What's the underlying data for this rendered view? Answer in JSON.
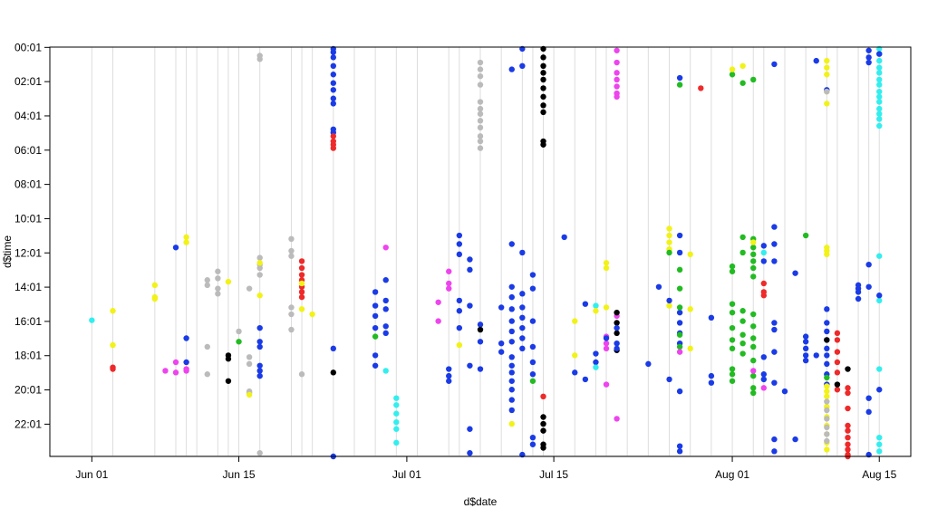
{
  "chart_data": {
    "type": "scatter",
    "title": "",
    "xlabel": "d$date",
    "ylabel": "d$time",
    "x_ticks": [
      "Jun 01",
      "Jun 15",
      "Jul 01",
      "Jul 15",
      "Aug 01",
      "Aug 15"
    ],
    "y_ticks": [
      "00:01",
      "02:01",
      "04:01",
      "06:01",
      "08:01",
      "10:01",
      "12:01",
      "14:01",
      "16:01",
      "18:01",
      "20:01",
      "22:01"
    ],
    "xlim": [
      "2016-05-28",
      "2016-08-18"
    ],
    "ylim_hours": [
      0.0,
      23.9
    ],
    "y_reversed": true,
    "grid": "vertical light-grey lines on observation dates",
    "legend": "none",
    "colors": {
      "cyan": "#33eeee",
      "yellow": "#f2f218",
      "red": "#ee2a2a",
      "magenta": "#ee44ee",
      "blue": "#1a3be6",
      "grey": "#bbbbbb",
      "black": "#000000",
      "green": "#22bb22"
    },
    "vlines": [
      "2016-06-01",
      "2016-06-03",
      "2016-06-07",
      "2016-06-09",
      "2016-06-10",
      "2016-06-11",
      "2016-06-13",
      "2016-06-14",
      "2016-06-15",
      "2016-06-17",
      "2016-06-20",
      "2016-06-21",
      "2016-06-22",
      "2016-06-24",
      "2016-06-26",
      "2016-06-28",
      "2016-06-30",
      "2016-07-02",
      "2016-07-05",
      "2016-07-06",
      "2016-07-08",
      "2016-07-10",
      "2016-07-12",
      "2016-07-13",
      "2016-07-14",
      "2016-07-15",
      "2016-07-17",
      "2016-07-19",
      "2016-07-20",
      "2016-07-22",
      "2016-07-24",
      "2016-07-26",
      "2016-07-28",
      "2016-07-30",
      "2016-08-01",
      "2016-08-03",
      "2016-08-04",
      "2016-08-06",
      "2016-08-08",
      "2016-08-10",
      "2016-08-11",
      "2016-08-13",
      "2016-08-14",
      "2016-08-15"
    ],
    "groups": [
      {
        "date": "2016-06-01",
        "color": "cyan",
        "times": [
          15.95
        ]
      },
      {
        "date": "2016-06-03",
        "color": "yellow",
        "times": [
          15.4,
          17.4
        ]
      },
      {
        "date": "2016-06-03",
        "color": "red",
        "times": [
          18.7,
          18.8
        ]
      },
      {
        "date": "2016-06-07",
        "color": "yellow",
        "times": [
          13.9,
          14.6,
          14.7
        ]
      },
      {
        "date": "2016-06-08",
        "color": "magenta",
        "times": [
          18.9
        ]
      },
      {
        "date": "2016-06-09",
        "color": "magenta",
        "times": [
          18.4,
          19.0
        ]
      },
      {
        "date": "2016-06-09",
        "color": "blue",
        "times": [
          11.7
        ]
      },
      {
        "date": "2016-06-10",
        "color": "yellow",
        "times": [
          11.1,
          11.4
        ]
      },
      {
        "date": "2016-06-10",
        "color": "blue",
        "times": [
          17.0,
          18.4
        ]
      },
      {
        "date": "2016-06-10",
        "color": "magenta",
        "times": [
          18.8,
          18.9
        ]
      },
      {
        "date": "2016-06-12",
        "color": "grey",
        "times": [
          13.6,
          13.9,
          17.5,
          19.1
        ]
      },
      {
        "date": "2016-06-13",
        "color": "grey",
        "times": [
          13.1,
          13.5,
          14.1,
          14.4
        ]
      },
      {
        "date": "2016-06-14",
        "color": "yellow",
        "times": [
          13.7
        ]
      },
      {
        "date": "2016-06-14",
        "color": "black",
        "times": [
          18.0,
          18.2,
          19.5
        ]
      },
      {
        "date": "2016-06-15",
        "color": "grey",
        "times": [
          16.6
        ]
      },
      {
        "date": "2016-06-15",
        "color": "green",
        "times": [
          17.2
        ]
      },
      {
        "date": "2016-06-16",
        "color": "grey",
        "times": [
          14.1,
          18.1,
          18.5,
          20.1,
          20.2
        ]
      },
      {
        "date": "2016-06-16",
        "color": "yellow",
        "times": [
          20.3
        ]
      },
      {
        "date": "2016-06-17",
        "color": "grey",
        "times": [
          0.5,
          0.7,
          12.3,
          12.7,
          12.9,
          13.3,
          23.7
        ]
      },
      {
        "date": "2016-06-17",
        "color": "yellow",
        "times": [
          12.6,
          14.5
        ]
      },
      {
        "date": "2016-06-17",
        "color": "blue",
        "times": [
          16.4,
          17.2,
          17.5,
          18.6,
          18.9,
          19.2
        ]
      },
      {
        "date": "2016-06-20",
        "color": "grey",
        "times": [
          11.2,
          11.9,
          12.2,
          15.2,
          15.6,
          16.5
        ]
      },
      {
        "date": "2016-06-21",
        "color": "red",
        "times": [
          12.5,
          12.9,
          13.3,
          13.6,
          14.0,
          14.3,
          14.6
        ]
      },
      {
        "date": "2016-06-21",
        "color": "yellow",
        "times": [
          13.8,
          15.3
        ]
      },
      {
        "date": "2016-06-21",
        "color": "grey",
        "times": [
          19.1
        ]
      },
      {
        "date": "2016-06-22",
        "color": "yellow",
        "times": [
          15.6
        ]
      },
      {
        "date": "2016-06-24",
        "color": "blue",
        "times": [
          0.1,
          0.3,
          0.6,
          1.1,
          1.6,
          2.1,
          2.5,
          3.0,
          3.3,
          4.8,
          5.0,
          17.6,
          23.9
        ]
      },
      {
        "date": "2016-06-24",
        "color": "red",
        "times": [
          5.2,
          5.5,
          5.7,
          5.9
        ]
      },
      {
        "date": "2016-06-24",
        "color": "black",
        "times": [
          19.0
        ]
      },
      {
        "date": "2016-06-28",
        "color": "blue",
        "times": [
          14.3,
          15.1,
          15.7,
          16.4,
          18.0,
          18.6
        ]
      },
      {
        "date": "2016-06-28",
        "color": "green",
        "times": [
          16.9
        ]
      },
      {
        "date": "2016-06-29",
        "color": "magenta",
        "times": [
          11.7
        ]
      },
      {
        "date": "2016-06-29",
        "color": "blue",
        "times": [
          13.6,
          14.8,
          15.3,
          16.3,
          16.7
        ]
      },
      {
        "date": "2016-06-29",
        "color": "cyan",
        "times": [
          18.9
        ]
      },
      {
        "date": "2016-06-30",
        "color": "cyan",
        "times": [
          20.5,
          20.9,
          21.4,
          21.9,
          22.3,
          23.1
        ]
      },
      {
        "date": "2016-07-04",
        "color": "magenta",
        "times": [
          14.9
        ]
      },
      {
        "date": "2016-07-04",
        "color": "magenta",
        "times": [
          16.0
        ]
      },
      {
        "date": "2016-07-05",
        "color": "magenta",
        "times": [
          13.1,
          13.8,
          14.1
        ]
      },
      {
        "date": "2016-07-05",
        "color": "blue",
        "times": [
          18.8,
          19.2,
          19.5
        ]
      },
      {
        "date": "2016-07-06",
        "color": "blue",
        "times": [
          11.0,
          11.5,
          12.1,
          14.8,
          15.4,
          16.4
        ]
      },
      {
        "date": "2016-07-06",
        "color": "yellow",
        "times": [
          17.4
        ]
      },
      {
        "date": "2016-07-07",
        "color": "blue",
        "times": [
          12.4,
          13.0,
          15.1,
          18.6,
          22.3,
          23.7
        ]
      },
      {
        "date": "2016-07-08",
        "color": "grey",
        "times": [
          0.9,
          1.3,
          1.7,
          2.2,
          3.2,
          3.6,
          3.9,
          4.3,
          4.7,
          5.2,
          5.5,
          5.9
        ]
      },
      {
        "date": "2016-07-08",
        "color": "blue",
        "times": [
          16.2,
          17.2,
          18.8
        ]
      },
      {
        "date": "2016-07-08",
        "color": "black",
        "times": [
          16.5
        ]
      },
      {
        "date": "2016-07-10",
        "color": "blue",
        "times": [
          15.2,
          17.3,
          17.8
        ]
      },
      {
        "date": "2016-07-11",
        "color": "blue",
        "times": [
          1.3,
          11.5,
          14.0,
          14.6,
          15.3,
          16.0,
          16.6,
          17.2,
          18.1,
          18.6,
          19.0,
          19.5,
          20.0,
          20.6,
          21.2
        ]
      },
      {
        "date": "2016-07-11",
        "color": "yellow",
        "times": [
          22.0
        ]
      },
      {
        "date": "2016-07-12",
        "color": "blue",
        "times": [
          0.1,
          1.1,
          12.0,
          14.4,
          15.2,
          15.8,
          16.4,
          17.0,
          17.6,
          23.8
        ]
      },
      {
        "date": "2016-07-13",
        "color": "blue",
        "times": [
          13.3,
          14.1,
          16.0,
          17.5,
          18.4,
          19.1,
          22.8,
          23.2
        ]
      },
      {
        "date": "2016-07-13",
        "color": "green",
        "times": [
          19.5
        ]
      },
      {
        "date": "2016-07-14",
        "color": "black",
        "times": [
          0.1,
          0.6,
          1.1,
          1.5,
          1.9,
          2.4,
          2.9,
          3.4,
          3.8,
          5.5,
          5.7,
          21.6,
          22.0,
          22.4,
          23.2,
          23.4
        ]
      },
      {
        "date": "2016-07-14",
        "color": "red",
        "times": [
          20.4
        ]
      },
      {
        "date": "2016-07-16",
        "color": "blue",
        "times": [
          11.1
        ]
      },
      {
        "date": "2016-07-17",
        "color": "yellow",
        "times": [
          16.0,
          18.0
        ]
      },
      {
        "date": "2016-07-17",
        "color": "blue",
        "times": [
          19.0
        ]
      },
      {
        "date": "2016-07-18",
        "color": "blue",
        "times": [
          15.0,
          19.4
        ]
      },
      {
        "date": "2016-07-19",
        "color": "cyan",
        "times": [
          15.1
        ]
      },
      {
        "date": "2016-07-19",
        "color": "yellow",
        "times": [
          15.4
        ]
      },
      {
        "date": "2016-07-19",
        "color": "blue",
        "times": [
          17.9,
          18.4
        ]
      },
      {
        "date": "2016-07-19",
        "color": "cyan",
        "times": [
          18.7
        ]
      },
      {
        "date": "2016-07-20",
        "color": "yellow",
        "times": [
          12.6,
          12.9,
          15.2
        ]
      },
      {
        "date": "2016-07-20",
        "color": "magenta",
        "times": [
          16.9,
          17.3,
          17.6
        ]
      },
      {
        "date": "2016-07-20",
        "color": "blue",
        "times": [
          17.0
        ]
      },
      {
        "date": "2016-07-20",
        "color": "magenta",
        "times": [
          19.7
        ]
      },
      {
        "date": "2016-07-21",
        "color": "magenta",
        "times": [
          0.2,
          0.9,
          1.5,
          1.9,
          2.3,
          2.7,
          2.9,
          15.7,
          21.7
        ]
      },
      {
        "date": "2016-07-21",
        "color": "black",
        "times": [
          15.5,
          16.1,
          16.7,
          17.7
        ]
      },
      {
        "date": "2016-07-21",
        "color": "blue",
        "times": [
          16.4,
          17.3,
          17.6
        ]
      },
      {
        "date": "2016-07-24",
        "color": "blue",
        "times": [
          18.5
        ]
      },
      {
        "date": "2016-07-25",
        "color": "blue",
        "times": [
          14.0
        ]
      },
      {
        "date": "2016-07-26",
        "color": "yellow",
        "times": [
          10.6,
          11.0,
          11.4,
          11.8,
          15.1
        ]
      },
      {
        "date": "2016-07-26",
        "color": "blue",
        "times": [
          14.8,
          19.4
        ]
      },
      {
        "date": "2016-07-26",
        "color": "green",
        "times": [
          12.0
        ]
      },
      {
        "date": "2016-07-27",
        "color": "blue",
        "times": [
          1.8,
          11.0,
          12.0,
          15.5,
          16.1,
          16.7,
          17.3,
          20.1,
          23.3,
          23.6
        ]
      },
      {
        "date": "2016-07-27",
        "color": "green",
        "times": [
          2.2,
          13.0,
          14.1,
          15.2,
          16.8,
          17.5
        ]
      },
      {
        "date": "2016-07-27",
        "color": "magenta",
        "times": [
          17.8
        ]
      },
      {
        "date": "2016-07-28",
        "color": "yellow",
        "times": [
          12.1,
          15.3,
          17.6
        ]
      },
      {
        "date": "2016-07-29",
        "color": "red",
        "times": [
          2.4
        ]
      },
      {
        "date": "2016-07-30",
        "color": "blue",
        "times": [
          15.8,
          19.2,
          19.6
        ]
      },
      {
        "date": "2016-08-01",
        "color": "green",
        "times": [
          1.6,
          12.8,
          13.1,
          15.0,
          15.5,
          16.4,
          17.1,
          17.6,
          18.8,
          19.1,
          19.5
        ]
      },
      {
        "date": "2016-08-01",
        "color": "yellow",
        "times": [
          1.3
        ]
      },
      {
        "date": "2016-08-02",
        "color": "green",
        "times": [
          2.1,
          11.1,
          12.0,
          15.4,
          16.0,
          16.8,
          17.3,
          17.9
        ]
      },
      {
        "date": "2016-08-02",
        "color": "yellow",
        "times": [
          1.1
        ]
      },
      {
        "date": "2016-08-03",
        "color": "green",
        "times": [
          1.9,
          11.2,
          11.7,
          12.1,
          12.5,
          12.9,
          13.4,
          15.6,
          16.3,
          17.0,
          17.5,
          18.3,
          19.2,
          19.9,
          20.2
        ]
      },
      {
        "date": "2016-08-03",
        "color": "yellow",
        "times": [
          11.4
        ]
      },
      {
        "date": "2016-08-03",
        "color": "magenta",
        "times": [
          18.9
        ]
      },
      {
        "date": "2016-08-04",
        "color": "cyan",
        "times": [
          12.0,
          19.4
        ]
      },
      {
        "date": "2016-08-04",
        "color": "blue",
        "times": [
          11.6,
          12.5,
          18.1,
          19.1,
          19.4
        ]
      },
      {
        "date": "2016-08-04",
        "color": "red",
        "times": [
          13.8,
          14.3,
          14.5
        ]
      },
      {
        "date": "2016-08-04",
        "color": "magenta",
        "times": [
          19.9
        ]
      },
      {
        "date": "2016-08-05",
        "color": "blue",
        "times": [
          1.0,
          10.5,
          11.5,
          12.5,
          16.1,
          16.5,
          17.8,
          19.6,
          22.9,
          23.6
        ]
      },
      {
        "date": "2016-08-06",
        "color": "blue",
        "times": [
          20.1
        ]
      },
      {
        "date": "2016-08-07",
        "color": "blue",
        "times": [
          13.2,
          22.9
        ]
      },
      {
        "date": "2016-08-08",
        "color": "green",
        "times": [
          11.0
        ]
      },
      {
        "date": "2016-08-08",
        "color": "blue",
        "times": [
          16.9,
          17.2,
          17.6,
          18.0,
          18.3
        ]
      },
      {
        "date": "2016-08-09",
        "color": "blue",
        "times": [
          0.8,
          18.0
        ]
      },
      {
        "date": "2016-08-10",
        "color": "blue",
        "times": [
          15.3,
          16.1,
          16.6,
          17.1,
          17.6,
          18.0,
          18.5,
          19.1,
          19.7,
          2.5
        ]
      },
      {
        "date": "2016-08-10",
        "color": "yellow",
        "times": [
          0.8,
          1.2,
          1.6,
          2.6,
          3.3,
          11.7,
          11.9,
          12.1,
          19.8,
          20.1,
          20.4,
          21.0,
          21.6,
          22.1,
          22.6,
          23.1,
          23.5
        ]
      },
      {
        "date": "2016-08-10",
        "color": "grey",
        "times": [
          2.6,
          20.7,
          21.2,
          21.7,
          22.2,
          22.6,
          23.0
        ]
      },
      {
        "date": "2016-08-10",
        "color": "black",
        "times": [
          17.1
        ]
      },
      {
        "date": "2016-08-10",
        "color": "green",
        "times": [
          19.3
        ]
      },
      {
        "date": "2016-08-11",
        "color": "red",
        "times": [
          16.7,
          17.1,
          17.8,
          18.4,
          19.0,
          20.0
        ]
      },
      {
        "date": "2016-08-11",
        "color": "black",
        "times": [
          19.7
        ]
      },
      {
        "date": "2016-08-12",
        "color": "black",
        "times": [
          18.8
        ]
      },
      {
        "date": "2016-08-12",
        "color": "red",
        "times": [
          19.9,
          20.2,
          21.1,
          22.1,
          22.4,
          22.8,
          23.2,
          23.5,
          23.8,
          23.9
        ]
      },
      {
        "date": "2016-08-13",
        "color": "blue",
        "times": [
          13.9,
          14.1,
          14.3,
          14.7
        ]
      },
      {
        "date": "2016-08-14",
        "color": "blue",
        "times": [
          0.2,
          0.6,
          0.9,
          12.7,
          14.0,
          20.5,
          21.3,
          23.8
        ]
      },
      {
        "date": "2016-08-15",
        "color": "cyan",
        "times": [
          0.1,
          0.4,
          0.8,
          1.2,
          1.5,
          1.9,
          2.2,
          2.6,
          2.9,
          3.2,
          3.6,
          3.9,
          4.2,
          4.6,
          12.2,
          14.8,
          18.8,
          22.8,
          23.2,
          23.6
        ]
      },
      {
        "date": "2016-08-15",
        "color": "blue",
        "times": [
          0.4,
          14.5,
          20.0
        ]
      }
    ]
  }
}
